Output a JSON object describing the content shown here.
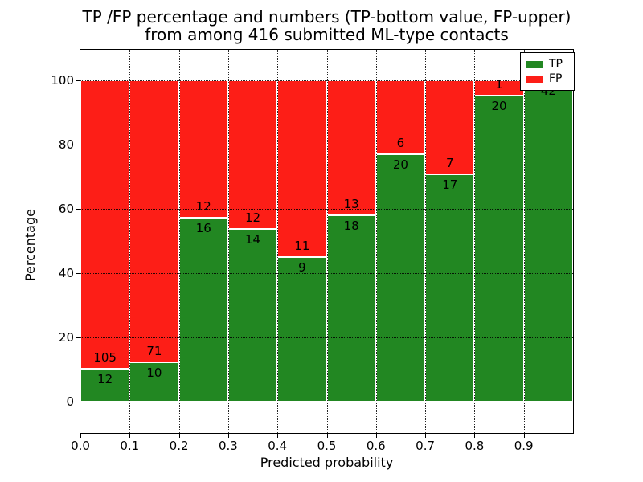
{
  "title": {
    "line1": "TP /FP percentage and numbers (TP-bottom value, FP-upper)",
    "line2": "from among 416 submitted ML-type contacts"
  },
  "chart_data": {
    "type": "bar",
    "stacked": true,
    "title": "TP /FP percentage and numbers (TP-bottom value, FP-upper) from among 416 submitted ML-type contacts",
    "xlabel": "Predicted probability",
    "ylabel": "Percentage",
    "xlim": [
      0.0,
      1.0
    ],
    "ylim": [
      -10,
      110
    ],
    "bin_width": 0.1,
    "bin_starts": [
      0.0,
      0.1,
      0.2,
      0.3,
      0.4,
      0.5,
      0.6,
      0.7,
      0.8,
      0.9
    ],
    "x_tick_labels": [
      "0.0",
      "0.1",
      "0.2",
      "0.3",
      "0.4",
      "0.5",
      "0.6",
      "0.7",
      "0.8",
      "0.9"
    ],
    "y_ticks": [
      0,
      20,
      40,
      60,
      80,
      100
    ],
    "grid": "dotted",
    "legend_position": "upper-right",
    "series": [
      {
        "name": "TP",
        "color": "#228722",
        "counts": [
          12,
          10,
          16,
          14,
          9,
          18,
          20,
          17,
          20,
          42
        ]
      },
      {
        "name": "FP",
        "color": "#FD1E17",
        "counts": [
          105,
          71,
          12,
          12,
          11,
          13,
          6,
          7,
          1,
          null
        ]
      }
    ],
    "tp_percentages": [
      10.3,
      12.3,
      57.1,
      53.8,
      45.0,
      58.1,
      76.9,
      70.8,
      95.2,
      100.0
    ]
  },
  "colors": {
    "tp_green": "#228722",
    "fp_red": "#FD1E17",
    "grid": "#000000",
    "background": "#FFFFFF"
  }
}
